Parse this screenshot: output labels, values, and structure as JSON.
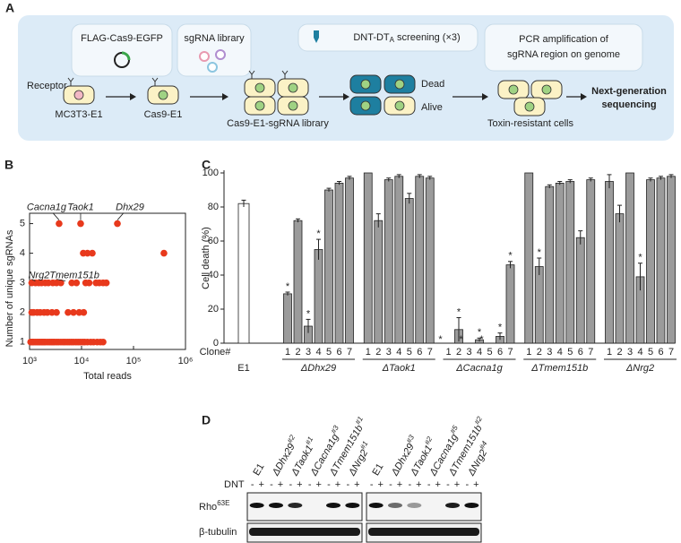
{
  "panel_labels": [
    "A",
    "B",
    "C",
    "D"
  ],
  "diagram": {
    "plasmid": "FLAG-Cas9-EGFP",
    "library": "sgRNA library",
    "screening": {
      "prefix": "DNT-DT",
      "subscript": "A",
      "suffix": " screening (×3)"
    },
    "pcr": [
      "PCR amplification of",
      "sgRNA region on genome"
    ],
    "receptor": "Receptor",
    "stages": [
      "MC3T3-E1",
      "Cas9-E1",
      "Cas9-E1-sgRNA library",
      "Toxin-resistant cells"
    ],
    "dead": "Dead",
    "alive": "Alive",
    "output": [
      "Next-generation",
      "sequencing"
    ]
  },
  "chart_data": [
    {
      "type": "scatter",
      "xlabel": "Total reads",
      "ylabel": "Number of unique sgRNAs",
      "color": "#e8391c",
      "log_x": true,
      "xlim": [
        1000,
        1000000
      ],
      "ylim": [
        0.75,
        5.35
      ],
      "xticks": [
        {
          "value": 1000,
          "label": "10³"
        },
        {
          "value": 10000,
          "label": "10⁴"
        },
        {
          "value": 100000,
          "label": "10⁵"
        },
        {
          "value": 1000000,
          "label": "10⁶"
        }
      ],
      "yticks": [
        1,
        2,
        3,
        4,
        5
      ],
      "x": [
        3700,
        9600,
        49000,
        10800,
        13000,
        16100,
        385000,
        1100,
        1300,
        1500,
        1700,
        2000,
        2300,
        2800,
        3300,
        4000,
        6500,
        8000,
        12000,
        14000,
        19000,
        22000,
        26000,
        30000,
        1100,
        1200,
        1400,
        1600,
        1900,
        2200,
        2700,
        3300,
        5500,
        7000,
        9000,
        11000,
        1050,
        1100,
        1150,
        1200,
        1300,
        1400,
        1500,
        1600,
        1700,
        1800,
        1900,
        2000,
        2200,
        2400,
        2600,
        2800,
        3000,
        3300,
        3600,
        4000,
        4400,
        4800,
        5300,
        5800,
        6400,
        7000,
        7800,
        8600,
        9500,
        10500,
        11500,
        13000,
        15000,
        17000,
        20000,
        23000,
        26000
      ],
      "y": [
        5,
        5,
        5,
        4,
        4,
        4,
        4,
        3,
        3,
        3,
        3,
        3,
        3,
        3,
        3,
        3,
        3,
        3,
        3,
        3,
        3,
        3,
        3,
        3,
        2,
        2,
        2,
        2,
        2,
        2,
        2,
        2,
        2,
        2,
        2,
        2,
        1,
        1,
        1,
        1,
        1,
        1,
        1,
        1,
        1,
        1,
        1,
        1,
        1,
        1,
        1,
        1,
        1,
        1,
        1,
        1,
        1,
        1,
        1,
        1,
        1,
        1,
        1,
        1,
        1,
        1,
        1,
        1,
        1,
        1,
        1,
        1,
        1
      ],
      "annotations": [
        {
          "text": "Cacna1g",
          "x": 3700,
          "y": 5
        },
        {
          "text": "Taok1",
          "x": 9600,
          "y": 5
        },
        {
          "text": "Dhx29",
          "x": 49000,
          "y": 5
        },
        {
          "text": "Nrg2",
          "x": 1100,
          "y": 3
        },
        {
          "text": "Tmem151b",
          "x": 3300,
          "y": 3
        }
      ]
    },
    {
      "type": "bar",
      "ylabel": "Cell death (%)",
      "clone_label": "Clone#",
      "significance_label": "*",
      "ylim": [
        0,
        100
      ],
      "yticks": [
        0,
        20,
        40,
        60,
        80,
        100
      ],
      "groups": [
        {
          "name": "E1",
          "color": "#ffffff",
          "categories": [
            null
          ],
          "values": [
            82
          ],
          "errors": [
            2
          ],
          "significant": [
            false
          ]
        },
        {
          "name": "ΔDhx29",
          "color": "#9b9b9b",
          "categories": [
            "1",
            "2",
            "3",
            "4",
            "5",
            "6",
            "7"
          ],
          "values": [
            29,
            72,
            10,
            55,
            90,
            94,
            97
          ],
          "errors": [
            1,
            1,
            4,
            6,
            1,
            1,
            1
          ],
          "significant": [
            true,
            false,
            true,
            true,
            false,
            false,
            false
          ]
        },
        {
          "name": "ΔTaok1",
          "color": "#9b9b9b",
          "categories": [
            "1",
            "2",
            "3",
            "4",
            "5",
            "6",
            "7"
          ],
          "values": [
            100,
            72,
            96,
            98,
            85,
            98,
            97
          ],
          "errors": [
            0,
            4,
            1,
            1,
            3,
            1,
            1
          ],
          "significant": [
            false,
            false,
            false,
            false,
            false,
            false,
            false
          ]
        },
        {
          "name": "ΔCacna1g",
          "color": "#9b9b9b",
          "categories": [
            "1",
            "2",
            "3",
            "4",
            "5",
            "6",
            "7"
          ],
          "values": [
            0,
            8,
            0,
            2,
            0,
            4,
            46
          ],
          "errors": [
            0,
            7,
            0,
            1,
            0,
            2,
            2
          ],
          "significant": [
            true,
            true,
            true,
            true,
            true,
            true,
            true
          ]
        },
        {
          "name": "ΔTmem151b",
          "color": "#9b9b9b",
          "categories": [
            "1",
            "2",
            "3",
            "4",
            "5",
            "6",
            "7"
          ],
          "values": [
            100,
            45,
            92,
            94,
            95,
            62,
            96
          ],
          "errors": [
            0,
            5,
            1,
            1,
            1,
            4,
            1
          ],
          "significant": [
            false,
            true,
            false,
            false,
            false,
            false,
            false
          ]
        },
        {
          "name": "ΔNrg2",
          "color": "#9b9b9b",
          "categories": [
            "1",
            "2",
            "3",
            "4",
            "5",
            "6",
            "7"
          ],
          "values": [
            95,
            76,
            100,
            39,
            96,
            97,
            98
          ],
          "errors": [
            4,
            5,
            0,
            8,
            1,
            1,
            1
          ],
          "significant": [
            false,
            false,
            false,
            true,
            false,
            false,
            false
          ]
        }
      ]
    }
  ],
  "blot": {
    "left_lanes": [
      {
        "name": "E1"
      },
      {
        "name": "ΔDhx29",
        "clone": "#2"
      },
      {
        "name": "ΔTaok1",
        "clone": "#1"
      },
      {
        "name": "ΔCacna1g",
        "clone": "#3"
      },
      {
        "name": "ΔTmem151b",
        "clone": "#1"
      },
      {
        "name": "ΔNrg2",
        "clone": "#1"
      }
    ],
    "right_lanes": [
      {
        "name": "E1"
      },
      {
        "name": "ΔDhx29",
        "clone": "#3"
      },
      {
        "name": "ΔTaok1",
        "clone": "#2"
      },
      {
        "name": "ΔCacna1g",
        "clone": "#5"
      },
      {
        "name": "ΔTmem151b",
        "clone": "#2"
      },
      {
        "name": "ΔNrg2",
        "clone": "#4"
      }
    ],
    "treatment": "DNT",
    "minus": "-",
    "plus": "+",
    "rows": [
      {
        "name": "Rho",
        "sup": "63E"
      },
      {
        "name": "β-tubulin"
      }
    ]
  }
}
